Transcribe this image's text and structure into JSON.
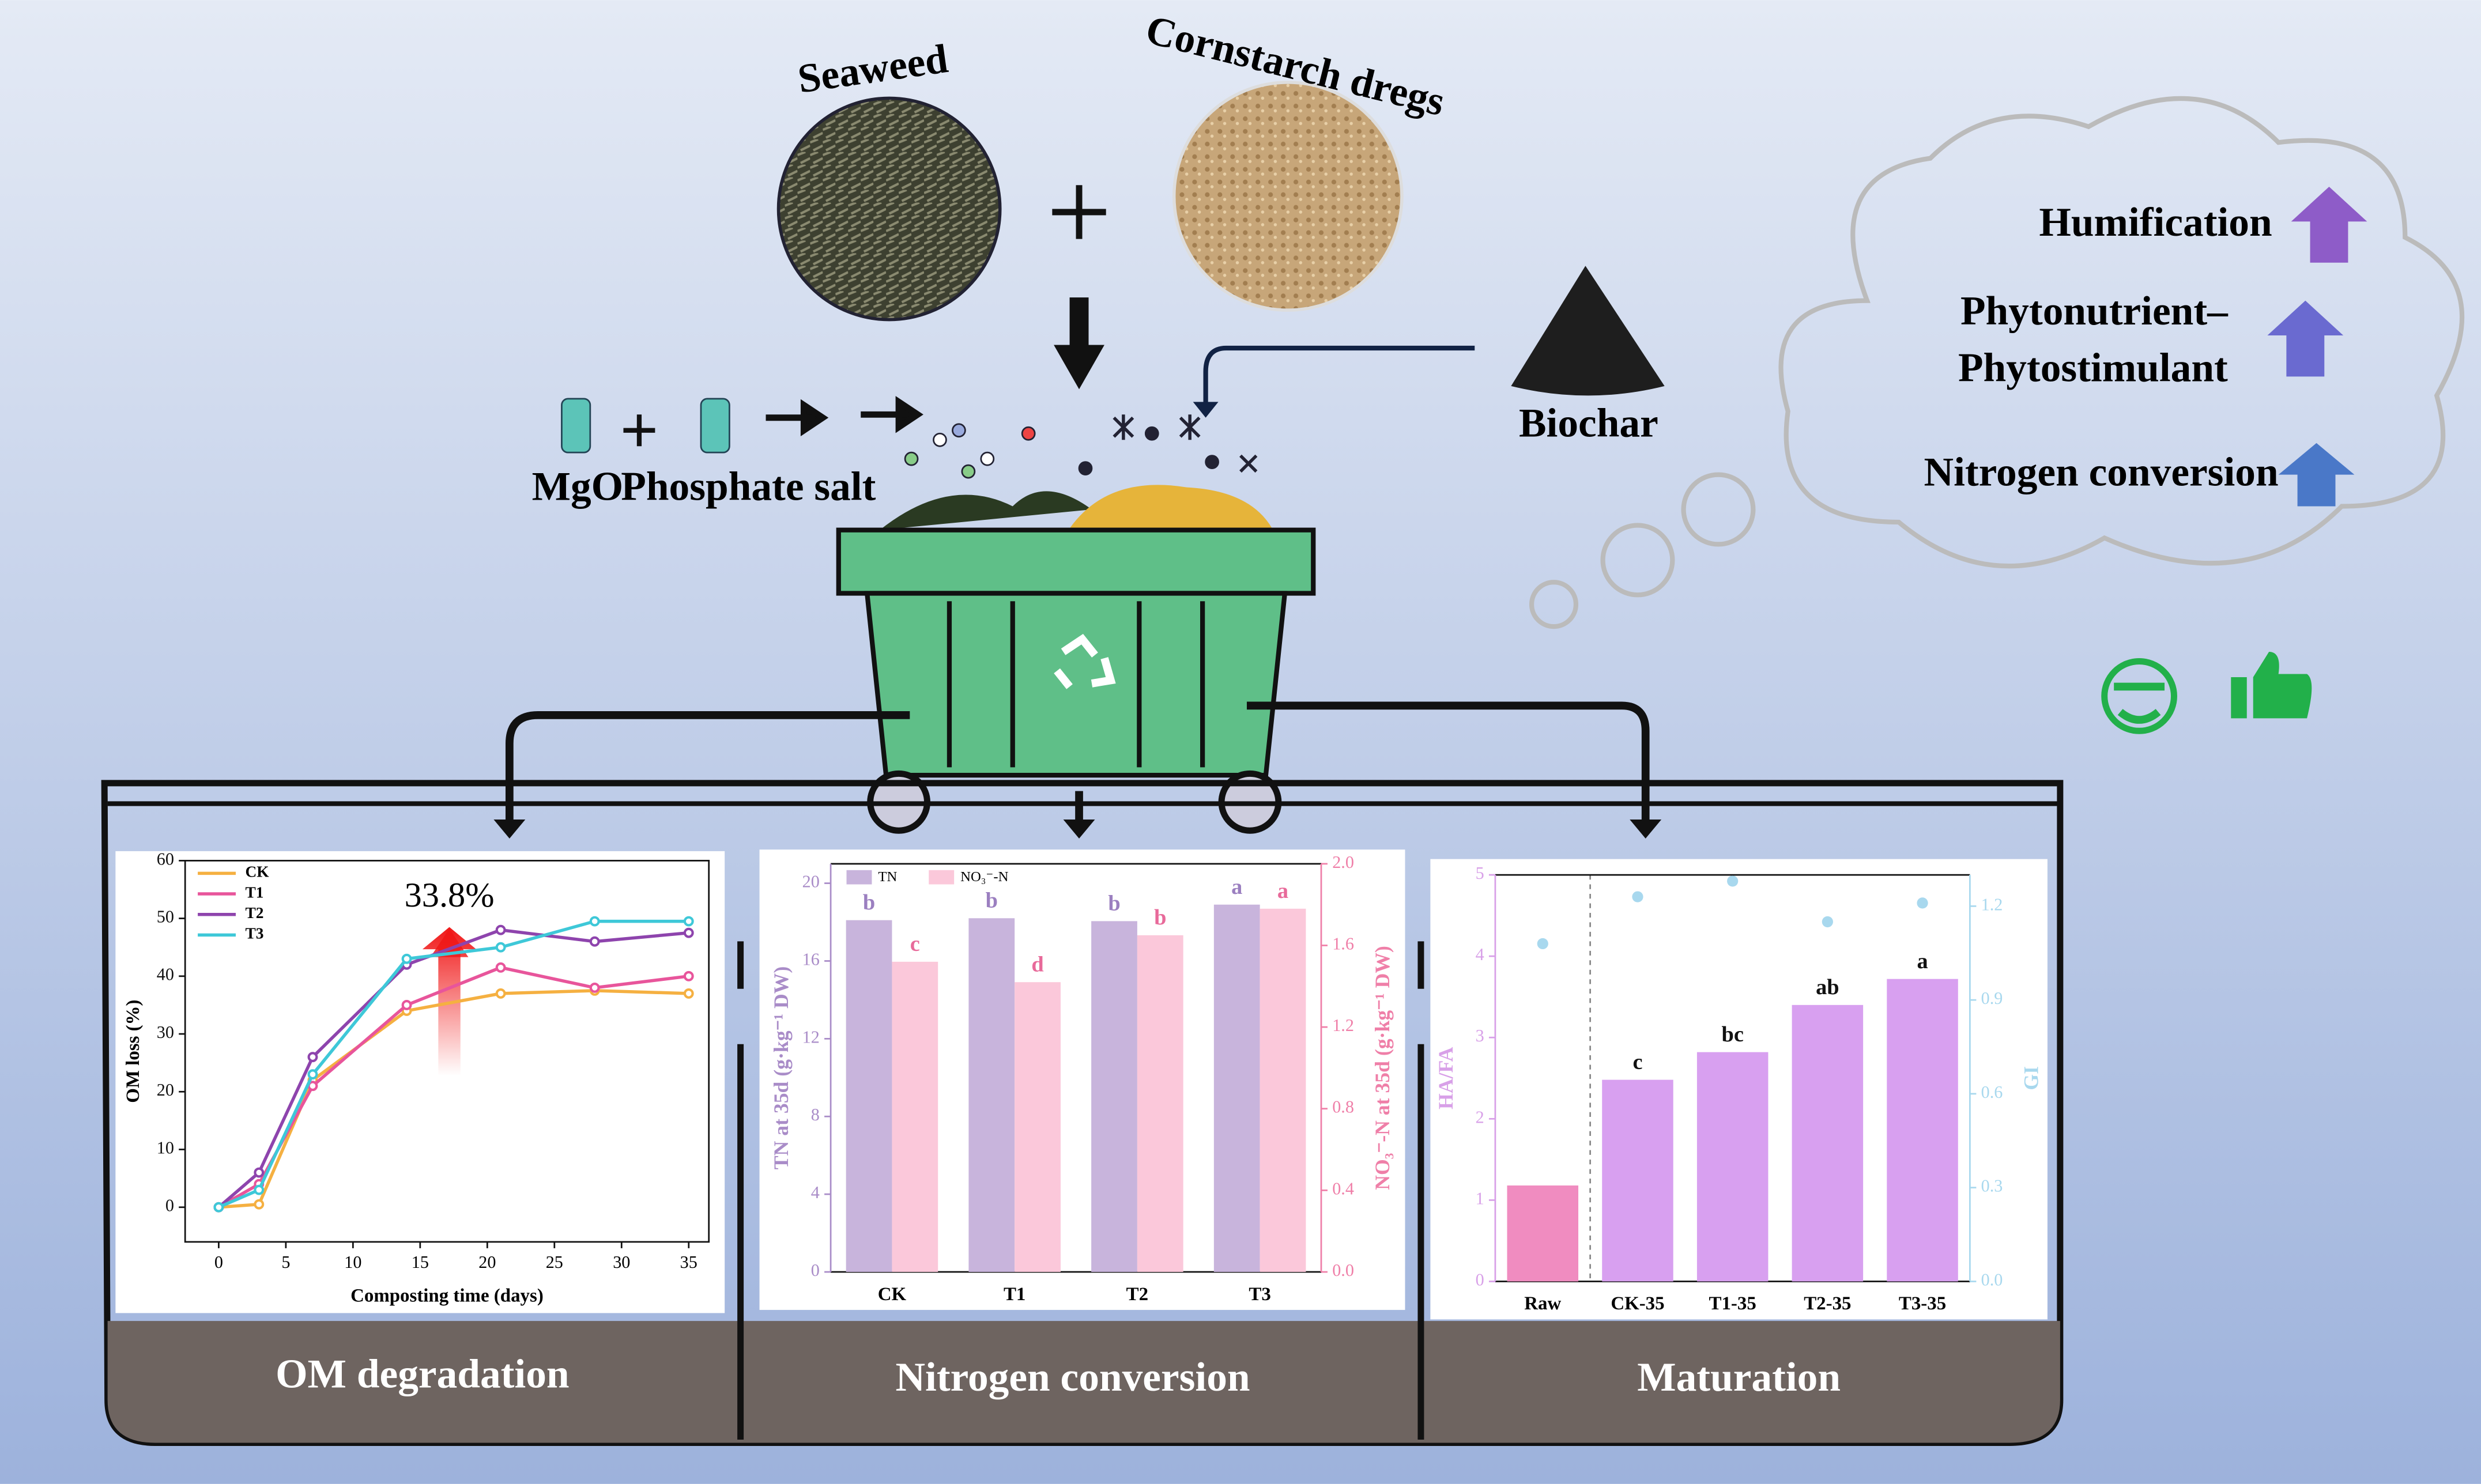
{
  "labels": {
    "seaweed": "Seaweed",
    "cornstarch": "Cornstarch dregs",
    "biochar": "Biochar",
    "mgo": "MgO",
    "phosphate": "Phosphate salt",
    "humification": "Humification",
    "phytonutrient": "Phytonutrient–",
    "phytostimulant": "Phytostimulant",
    "nitrogen": "Nitrogen conversion"
  },
  "panels": [
    "OM degradation",
    "Nitrogen conversion",
    "Maturation"
  ],
  "chart_data": [
    {
      "type": "line",
      "xlabel": "Composting time (days)",
      "ylabel": "OM loss (%)",
      "annotation": "33.8%",
      "x": [
        0,
        3,
        7,
        14,
        21,
        28,
        35
      ],
      "xlim": [
        -2.5,
        36.5
      ],
      "xticks": [
        0,
        5,
        10,
        15,
        20,
        25,
        30,
        35
      ],
      "ylim": [
        -6,
        60
      ],
      "yticks": [
        0,
        10,
        20,
        30,
        40,
        50,
        60
      ],
      "series": [
        {
          "name": "CK",
          "color": "#f5b041",
          "values": [
            0,
            0.5,
            22,
            34,
            37,
            37.5,
            37
          ]
        },
        {
          "name": "T1",
          "color": "#e8559b",
          "values": [
            0,
            4,
            21,
            35,
            41.5,
            38,
            40
          ]
        },
        {
          "name": "T2",
          "color": "#8e44ad",
          "values": [
            0,
            6,
            26,
            42,
            48,
            46,
            47.5
          ]
        },
        {
          "name": "T3",
          "color": "#3ec8d8",
          "values": [
            0,
            3,
            23,
            43,
            45,
            49.5,
            49.5
          ]
        }
      ]
    },
    {
      "type": "bar",
      "legend": true,
      "ylabel": "TN at 35d (g·kg⁻¹ DW)",
      "y2label": "NO₃⁻-N at 35d (g·kg⁻¹ DW)",
      "ycolor": "#a98cc8",
      "y2color": "#ef7fa8",
      "categories": [
        "CK",
        "T1",
        "T2",
        "T3"
      ],
      "ylim": [
        0,
        21
      ],
      "yticks": [
        0,
        4,
        8,
        12,
        16,
        20
      ],
      "y2lim": [
        0,
        2.0
      ],
      "y2ticks": [
        {
          "value": 0,
          "label": "0.0"
        },
        {
          "value": 0.4,
          "label": "0.4"
        },
        {
          "value": 0.8,
          "label": "0.8"
        },
        {
          "value": 1.2,
          "label": "1.2"
        },
        {
          "value": 1.6,
          "label": "1.6"
        },
        {
          "value": 2.0,
          "label": "2.0"
        }
      ],
      "series": [
        {
          "name": "TN",
          "color": "#c8b4dc",
          "letter_color": "#9b7fc0",
          "values": [
            18.1,
            18.2,
            18.05,
            18.9
          ],
          "letters": [
            "b",
            "b",
            "b",
            "a"
          ]
        },
        {
          "name": "NO₃⁻-N",
          "color": "#fbc8da",
          "letter_color": "#e86a9a",
          "axis": "y2",
          "values": [
            1.52,
            1.42,
            1.65,
            1.78
          ],
          "letters": [
            "c",
            "d",
            "b",
            "a"
          ]
        }
      ]
    },
    {
      "type": "bar",
      "legend": false,
      "ylabel": "HA/FA",
      "y2label": "GI",
      "ycolor": "#d8a0e8",
      "y2color": "#a8d8ee",
      "categories": [
        "Raw",
        "CK-35",
        "T1-35",
        "T2-35",
        "T3-35"
      ],
      "ylim": [
        0,
        5
      ],
      "yticks": [
        0,
        1,
        2,
        3,
        4,
        5
      ],
      "y2lim": [
        0,
        1.3
      ],
      "y2ticks": [
        {
          "value": 0,
          "label": "0.0"
        },
        {
          "value": 0.3,
          "label": "0.3"
        },
        {
          "value": 0.6,
          "label": "0.6"
        },
        {
          "value": 0.9,
          "label": "0.9"
        },
        {
          "value": 1.2,
          "label": "1.2"
        }
      ],
      "series": [
        {
          "name": "HA/FA",
          "colors": [
            "#f08cc0",
            "#d8a0f0",
            "#d8a0f0",
            "#d8a0f0",
            "#d8a0f0"
          ],
          "letter_color": "#111",
          "values": [
            1.18,
            2.48,
            2.82,
            3.4,
            3.72
          ],
          "letters": [
            null,
            "c",
            "bc",
            "ab",
            "a"
          ]
        },
        {
          "name": "GI",
          "style": "point",
          "color": "#a8d8ee",
          "axis": "y2",
          "values": [
            1.08,
            1.23,
            1.28,
            1.15,
            1.21
          ]
        }
      ]
    }
  ]
}
